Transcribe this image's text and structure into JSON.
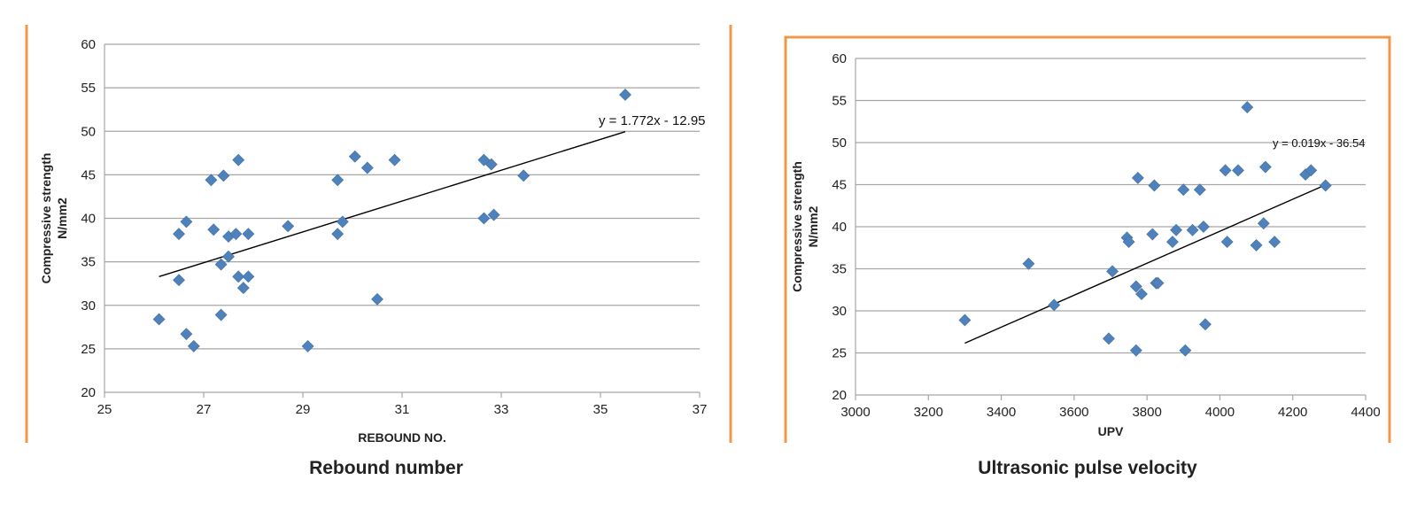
{
  "colors": {
    "frame": "#f0984a",
    "marker": "#4f81bd",
    "grid": "#a6a6a6",
    "trend": "#000000"
  },
  "chart_data": [
    {
      "type": "scatter",
      "caption": "Rebound number",
      "xlabel": "REBOUND NO.",
      "ylabel_line1": "Compressive strength",
      "ylabel_line2": "N/mm2",
      "xlim": [
        25,
        37
      ],
      "ylim": [
        20,
        60
      ],
      "xticks": [
        25,
        27,
        29,
        31,
        33,
        35,
        37
      ],
      "yticks": [
        20,
        25,
        30,
        35,
        40,
        45,
        50,
        55,
        60
      ],
      "grid": "horizontal",
      "trendline": {
        "slope": 1.772,
        "intercept": -12.95,
        "x_range": [
          26.1,
          35.5
        ],
        "label": "y = 1.772x - 12.95"
      },
      "points": [
        [
          26.1,
          28.4
        ],
        [
          26.5,
          38.2
        ],
        [
          26.5,
          32.9
        ],
        [
          26.65,
          39.6
        ],
        [
          26.65,
          26.7
        ],
        [
          26.8,
          25.3
        ],
        [
          27.15,
          44.4
        ],
        [
          27.2,
          38.7
        ],
        [
          27.35,
          34.7
        ],
        [
          27.35,
          28.9
        ],
        [
          27.4,
          44.9
        ],
        [
          27.5,
          37.9
        ],
        [
          27.5,
          35.6
        ],
        [
          27.65,
          38.2
        ],
        [
          27.7,
          46.7
        ],
        [
          27.7,
          33.3
        ],
        [
          27.8,
          32.0
        ],
        [
          27.9,
          38.2
        ],
        [
          27.9,
          33.3
        ],
        [
          28.7,
          39.1
        ],
        [
          29.1,
          25.3
        ],
        [
          29.7,
          44.4
        ],
        [
          29.7,
          38.2
        ],
        [
          29.8,
          39.6
        ],
        [
          30.05,
          47.1
        ],
        [
          30.3,
          45.8
        ],
        [
          30.5,
          30.7
        ],
        [
          30.85,
          46.7
        ],
        [
          32.65,
          46.7
        ],
        [
          32.65,
          40.0
        ],
        [
          32.8,
          46.2
        ],
        [
          32.85,
          40.4
        ],
        [
          33.45,
          44.9
        ],
        [
          35.5,
          54.2
        ]
      ]
    },
    {
      "type": "scatter",
      "caption": "Ultrasonic pulse velocity",
      "xlabel": "UPV",
      "ylabel_line1": "Compressive strength",
      "ylabel_line2": "N/mm2",
      "xlim": [
        3000,
        4400
      ],
      "ylim": [
        20,
        60
      ],
      "xticks": [
        3000,
        3200,
        3400,
        3600,
        3800,
        4000,
        4200,
        4400
      ],
      "yticks": [
        20,
        25,
        30,
        35,
        40,
        45,
        50,
        55,
        60
      ],
      "grid": "horizontal",
      "trendline": {
        "slope": 0.019,
        "intercept": -36.54,
        "x_range": [
          3300,
          4290
        ],
        "label": "y = 0.019x - 36.54"
      },
      "points": [
        [
          3300,
          28.9
        ],
        [
          3475,
          35.6
        ],
        [
          3545,
          30.7
        ],
        [
          3695,
          26.7
        ],
        [
          3705,
          34.7
        ],
        [
          3745,
          38.7
        ],
        [
          3750,
          38.2
        ],
        [
          3770,
          32.9
        ],
        [
          3770,
          25.3
        ],
        [
          3775,
          45.8
        ],
        [
          3785,
          32.0
        ],
        [
          3815,
          39.1
        ],
        [
          3820,
          44.9
        ],
        [
          3825,
          33.3
        ],
        [
          3830,
          33.3
        ],
        [
          3870,
          38.2
        ],
        [
          3880,
          39.6
        ],
        [
          3900,
          44.4
        ],
        [
          3905,
          25.3
        ],
        [
          3925,
          39.6
        ],
        [
          3945,
          44.4
        ],
        [
          3955,
          40.0
        ],
        [
          3960,
          28.4
        ],
        [
          4015,
          46.7
        ],
        [
          4020,
          38.2
        ],
        [
          4050,
          46.7
        ],
        [
          4075,
          54.2
        ],
        [
          4100,
          37.8
        ],
        [
          4120,
          40.4
        ],
        [
          4125,
          47.1
        ],
        [
          4150,
          38.2
        ],
        [
          4235,
          46.2
        ],
        [
          4250,
          46.7
        ],
        [
          4290,
          44.9
        ]
      ]
    }
  ]
}
